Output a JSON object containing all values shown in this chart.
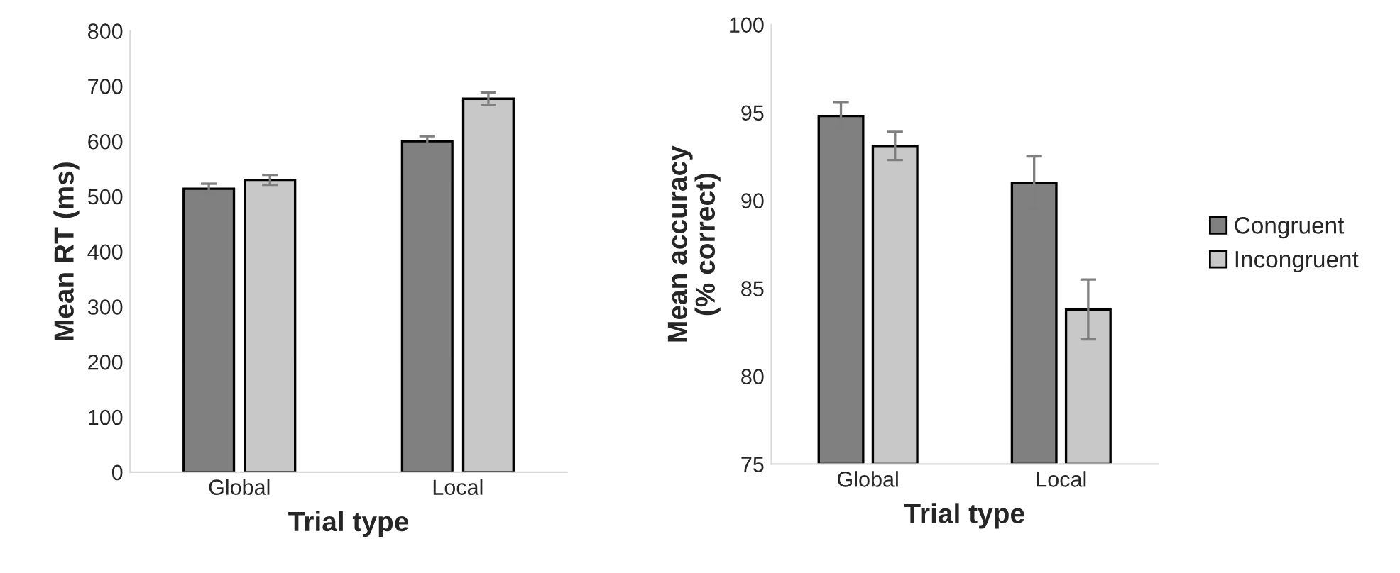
{
  "chart_data": [
    {
      "type": "bar",
      "xlabel": "Trial type",
      "ylabel": "Mean RT (ms)",
      "categories": [
        "Global",
        "Local"
      ],
      "ylim": [
        0,
        800
      ],
      "yticks": [
        0,
        100,
        200,
        300,
        400,
        500,
        600,
        700,
        800
      ],
      "grid": false,
      "legend": false,
      "series": [
        {
          "color": "#808080",
          "values": [
            514,
            600
          ],
          "errors": [
            9,
            9
          ]
        },
        {
          "color": "#c8c8c8",
          "values": [
            530,
            677
          ],
          "errors": [
            9,
            11
          ]
        }
      ]
    },
    {
      "type": "bar",
      "xlabel": "Trial type",
      "ylabel": "Mean accuracy\n(% correct)",
      "categories": [
        "Global",
        "Local"
      ],
      "ylim": [
        75,
        100
      ],
      "yticks": [
        75,
        80,
        85,
        90,
        95,
        100
      ],
      "grid": false,
      "legend": "right",
      "series": [
        {
          "name": "Congruent",
          "color": "#808080",
          "values": [
            94.8,
            91.0
          ],
          "errors": [
            0.8,
            1.5
          ]
        },
        {
          "name": "Incongruent",
          "color": "#c8c8c8",
          "values": [
            93.1,
            83.8
          ],
          "errors": [
            0.8,
            1.7
          ]
        }
      ]
    }
  ]
}
